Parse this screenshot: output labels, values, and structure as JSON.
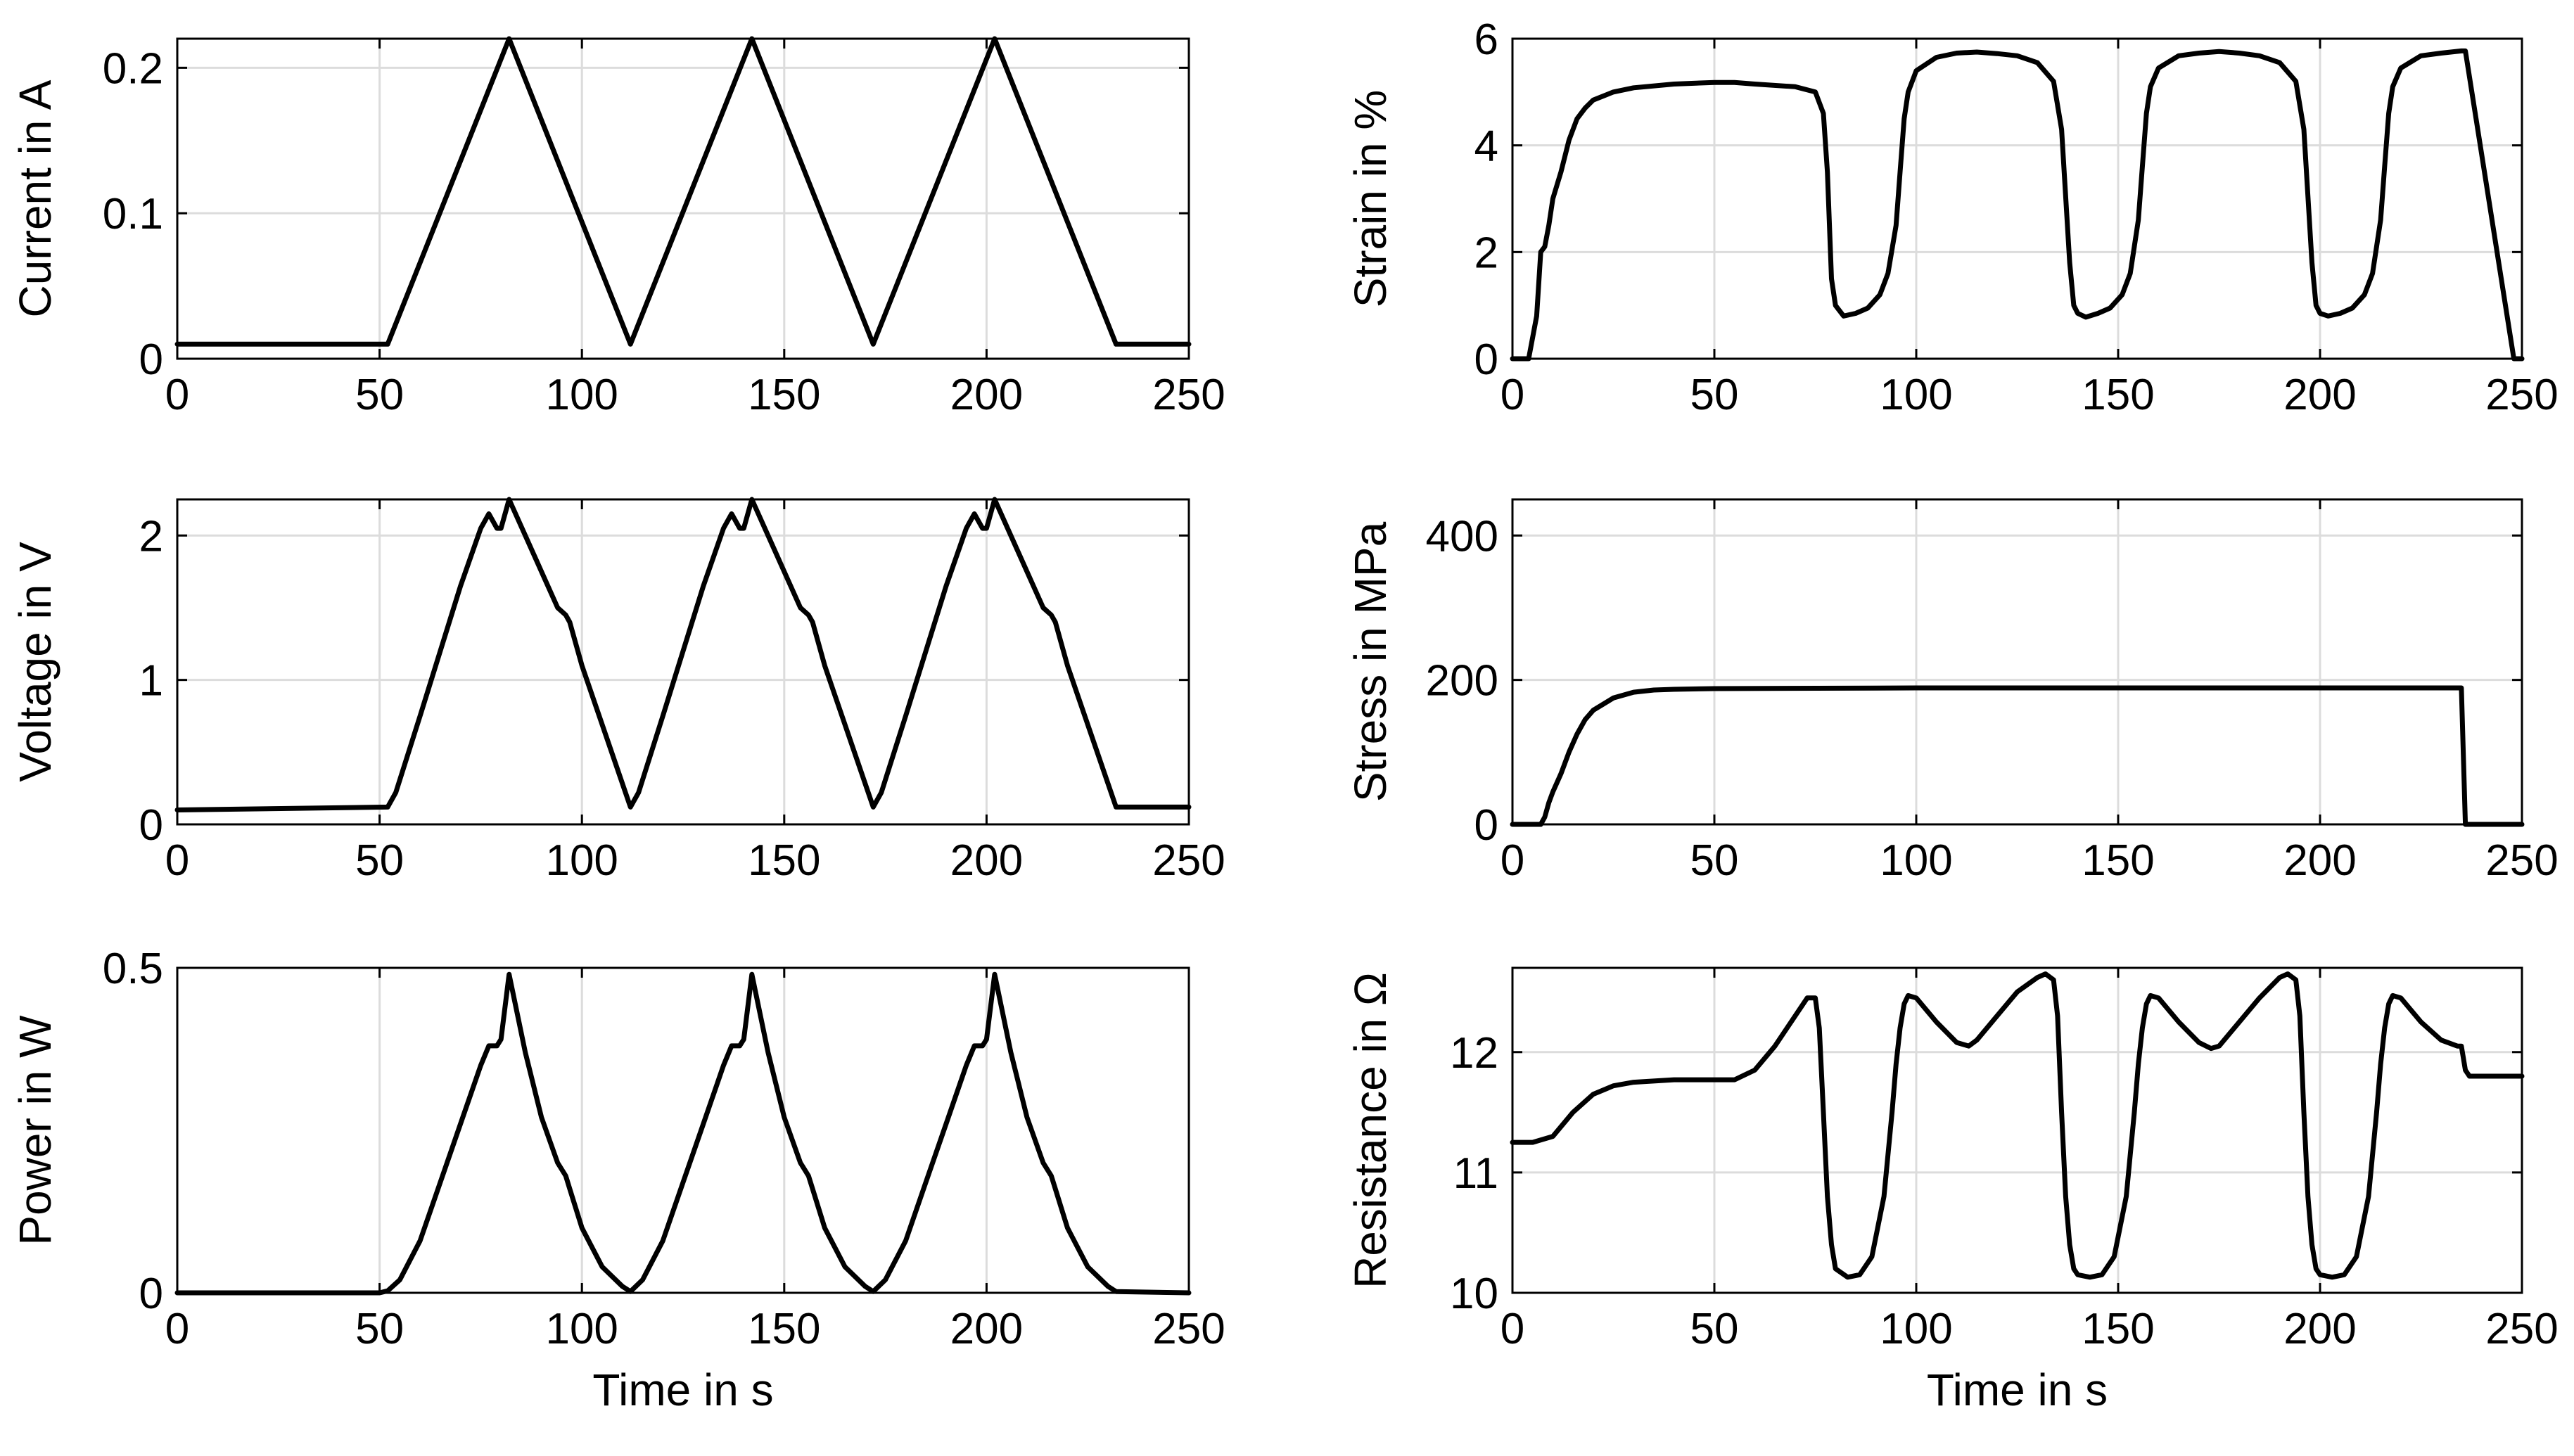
{
  "figure": {
    "style": {
      "line_color": "#000000",
      "grid_color": "#dcdcdc",
      "background": "#ffffff"
    }
  },
  "chart_data": [
    {
      "id": "current",
      "type": "line",
      "title": "",
      "xlabel": "",
      "ylabel": "Current in A",
      "xlim": [
        0,
        250
      ],
      "ylim": [
        0,
        0.22
      ],
      "xticks": [
        0,
        50,
        100,
        150,
        200,
        250
      ],
      "xtick_labels": [
        "0",
        "50",
        "100",
        "150",
        "200",
        "250"
      ],
      "yticks": [
        0,
        0.1,
        0.2
      ],
      "ytick_labels": [
        "0",
        "0.1",
        "0.2"
      ],
      "grid": true,
      "series": [
        {
          "name": "Current",
          "x": [
            0,
            52,
            82,
            112,
            142,
            172,
            202,
            232,
            250
          ],
          "y": [
            0.01,
            0.01,
            0.22,
            0.01,
            0.22,
            0.01,
            0.22,
            0.01,
            0.01
          ]
        }
      ]
    },
    {
      "id": "strain",
      "type": "line",
      "title": "",
      "xlabel": "",
      "ylabel": "Strain in %",
      "xlim": [
        0,
        250
      ],
      "ylim": [
        0,
        6
      ],
      "xticks": [
        0,
        50,
        100,
        150,
        200,
        250
      ],
      "xtick_labels": [
        "0",
        "50",
        "100",
        "150",
        "200",
        "250"
      ],
      "yticks": [
        0,
        2,
        4,
        6
      ],
      "ytick_labels": [
        "0",
        "2",
        "4",
        "6"
      ],
      "grid": true,
      "series": [
        {
          "name": "Strain",
          "x": [
            0,
            4,
            6,
            7,
            8,
            9,
            10,
            12,
            14,
            16,
            18,
            20,
            25,
            30,
            40,
            50,
            55,
            60,
            70,
            75,
            77,
            78,
            79,
            80,
            82,
            85,
            88,
            91,
            93,
            95,
            96,
            97,
            98,
            100,
            105,
            110,
            115,
            120,
            125,
            130,
            134,
            136,
            138,
            139,
            140,
            142,
            145,
            148,
            151,
            153,
            155,
            156,
            157,
            158,
            160,
            165,
            170,
            175,
            180,
            185,
            190,
            194,
            196,
            198,
            199,
            200,
            202,
            205,
            208,
            211,
            213,
            215,
            216,
            217,
            218,
            220,
            225,
            230,
            235,
            236,
            248,
            250
          ],
          "y": [
            0,
            0,
            0.8,
            2.0,
            2.1,
            2.5,
            3.0,
            3.5,
            4.1,
            4.5,
            4.7,
            4.85,
            5.0,
            5.08,
            5.15,
            5.18,
            5.18,
            5.15,
            5.1,
            5.0,
            4.6,
            3.5,
            1.5,
            1.0,
            0.8,
            0.85,
            0.95,
            1.2,
            1.6,
            2.5,
            3.5,
            4.5,
            5.0,
            5.4,
            5.65,
            5.73,
            5.75,
            5.72,
            5.68,
            5.55,
            5.2,
            4.3,
            1.8,
            1.0,
            0.85,
            0.78,
            0.85,
            0.95,
            1.2,
            1.6,
            2.6,
            3.6,
            4.6,
            5.1,
            5.45,
            5.68,
            5.73,
            5.76,
            5.73,
            5.68,
            5.55,
            5.2,
            4.3,
            1.8,
            1.0,
            0.85,
            0.8,
            0.85,
            0.95,
            1.2,
            1.6,
            2.6,
            3.6,
            4.6,
            5.1,
            5.45,
            5.68,
            5.73,
            5.77,
            5.77,
            0,
            0
          ]
        }
      ]
    },
    {
      "id": "voltage",
      "type": "line",
      "title": "",
      "xlabel": "",
      "ylabel": "Voltage in V",
      "xlim": [
        0,
        250
      ],
      "ylim": [
        0,
        2.25
      ],
      "xticks": [
        0,
        50,
        100,
        150,
        200,
        250
      ],
      "xtick_labels": [
        "0",
        "50",
        "100",
        "150",
        "200",
        "250"
      ],
      "yticks": [
        0,
        1,
        2
      ],
      "ytick_labels": [
        "0",
        "1",
        "2"
      ],
      "grid": true,
      "series": [
        {
          "name": "Voltage",
          "x": [
            0,
            52,
            54,
            60,
            70,
            75,
            77,
            79,
            80,
            82,
            86,
            90,
            94,
            96,
            97,
            100,
            112,
            114,
            120,
            130,
            135,
            137,
            139,
            140,
            142,
            146,
            150,
            154,
            156,
            157,
            160,
            172,
            174,
            180,
            190,
            195,
            197,
            199,
            200,
            202,
            206,
            210,
            214,
            216,
            217,
            220,
            232,
            250
          ],
          "y": [
            0.1,
            0.12,
            0.22,
            0.75,
            1.65,
            2.05,
            2.15,
            2.05,
            2.05,
            2.25,
            2.0,
            1.75,
            1.5,
            1.45,
            1.4,
            1.1,
            0.12,
            0.22,
            0.75,
            1.65,
            2.05,
            2.15,
            2.05,
            2.05,
            2.25,
            2.0,
            1.75,
            1.5,
            1.45,
            1.4,
            1.1,
            0.12,
            0.22,
            0.75,
            1.65,
            2.05,
            2.15,
            2.05,
            2.05,
            2.25,
            2.0,
            1.75,
            1.5,
            1.45,
            1.4,
            1.1,
            0.12,
            0.12
          ]
        }
      ]
    },
    {
      "id": "stress",
      "type": "line",
      "title": "",
      "xlabel": "",
      "ylabel": "Stress in MPa",
      "xlim": [
        0,
        250
      ],
      "ylim": [
        0,
        450
      ],
      "xticks": [
        0,
        50,
        100,
        150,
        200,
        250
      ],
      "xtick_labels": [
        "0",
        "50",
        "100",
        "150",
        "200",
        "250"
      ],
      "yticks": [
        0,
        200,
        400
      ],
      "ytick_labels": [
        "0",
        "200",
        "400"
      ],
      "grid": true,
      "series": [
        {
          "name": "Stress",
          "x": [
            0,
            7,
            8,
            9,
            10,
            12,
            14,
            16,
            18,
            20,
            25,
            30,
            35,
            40,
            50,
            100,
            150,
            200,
            235,
            236,
            250
          ],
          "y": [
            0,
            0,
            10,
            30,
            45,
            70,
            100,
            125,
            145,
            158,
            175,
            183,
            186,
            187,
            188,
            189,
            189,
            189,
            189,
            0,
            0
          ]
        }
      ]
    },
    {
      "id": "power",
      "type": "line",
      "title": "",
      "xlabel": "Time in s",
      "ylabel": "Power in W",
      "xlim": [
        0,
        250
      ],
      "ylim": [
        0,
        0.5
      ],
      "xticks": [
        0,
        50,
        100,
        150,
        200,
        250
      ],
      "xtick_labels": [
        "0",
        "50",
        "100",
        "150",
        "200",
        "250"
      ],
      "yticks": [
        0,
        0.5
      ],
      "ytick_labels": [
        "0",
        "0.5"
      ],
      "grid": true,
      "series": [
        {
          "name": "Power",
          "x": [
            0,
            50,
            52,
            55,
            60,
            65,
            70,
            75,
            77,
            79,
            80,
            82,
            86,
            90,
            94,
            96,
            97,
            100,
            105,
            110,
            112,
            115,
            120,
            125,
            130,
            135,
            137,
            139,
            140,
            142,
            146,
            150,
            154,
            156,
            157,
            160,
            165,
            170,
            172,
            175,
            180,
            185,
            190,
            195,
            197,
            199,
            200,
            202,
            206,
            210,
            214,
            216,
            217,
            220,
            225,
            230,
            232,
            250
          ],
          "y": [
            0,
            0,
            0.003,
            0.02,
            0.08,
            0.17,
            0.26,
            0.35,
            0.38,
            0.38,
            0.39,
            0.49,
            0.37,
            0.27,
            0.2,
            0.18,
            0.16,
            0.1,
            0.04,
            0.01,
            0.002,
            0.02,
            0.08,
            0.17,
            0.26,
            0.35,
            0.38,
            0.38,
            0.39,
            0.49,
            0.37,
            0.27,
            0.2,
            0.18,
            0.16,
            0.1,
            0.04,
            0.01,
            0.002,
            0.02,
            0.08,
            0.17,
            0.26,
            0.35,
            0.38,
            0.38,
            0.39,
            0.49,
            0.37,
            0.27,
            0.2,
            0.18,
            0.16,
            0.1,
            0.04,
            0.01,
            0.002,
            0
          ]
        }
      ]
    },
    {
      "id": "resistance",
      "type": "line",
      "title": "",
      "xlabel": "Time in s",
      "ylabel": "Resistance in Ω",
      "xlim": [
        0,
        250
      ],
      "ylim": [
        10,
        12.7
      ],
      "xticks": [
        0,
        50,
        100,
        150,
        200,
        250
      ],
      "xtick_labels": [
        "0",
        "50",
        "100",
        "150",
        "200",
        "250"
      ],
      "yticks": [
        10,
        11,
        12
      ],
      "ytick_labels": [
        "10",
        "11",
        "12"
      ],
      "grid": true,
      "series": [
        {
          "name": "Resistance",
          "x": [
            0,
            5,
            10,
            15,
            20,
            25,
            30,
            40,
            50,
            55,
            60,
            65,
            70,
            73,
            75,
            76,
            77,
            78,
            79,
            80,
            83,
            86,
            89,
            92,
            94,
            95,
            96,
            97,
            98,
            100,
            105,
            110,
            113,
            115,
            120,
            125,
            130,
            132,
            134,
            135,
            136,
            137,
            138,
            139,
            140,
            143,
            146,
            149,
            152,
            154,
            155,
            156,
            157,
            158,
            160,
            165,
            170,
            173,
            175,
            180,
            185,
            190,
            192,
            194,
            195,
            196,
            197,
            198,
            199,
            200,
            203,
            206,
            209,
            212,
            214,
            215,
            216,
            217,
            218,
            220,
            225,
            230,
            234,
            235,
            236,
            237,
            240,
            250
          ],
          "y": [
            11.25,
            11.25,
            11.3,
            11.5,
            11.65,
            11.72,
            11.75,
            11.77,
            11.77,
            11.77,
            11.85,
            12.05,
            12.3,
            12.45,
            12.45,
            12.2,
            11.5,
            10.8,
            10.4,
            10.2,
            10.13,
            10.15,
            10.3,
            10.8,
            11.5,
            11.9,
            12.2,
            12.4,
            12.47,
            12.45,
            12.25,
            12.08,
            12.05,
            12.1,
            12.3,
            12.5,
            12.62,
            12.65,
            12.6,
            12.3,
            11.5,
            10.8,
            10.4,
            10.2,
            10.15,
            10.13,
            10.15,
            10.3,
            10.8,
            11.5,
            11.9,
            12.2,
            12.4,
            12.47,
            12.45,
            12.25,
            12.08,
            12.03,
            12.05,
            12.25,
            12.45,
            12.62,
            12.65,
            12.6,
            12.3,
            11.5,
            10.8,
            10.4,
            10.2,
            10.15,
            10.13,
            10.15,
            10.3,
            10.8,
            11.5,
            11.9,
            12.2,
            12.4,
            12.47,
            12.45,
            12.25,
            12.1,
            12.05,
            12.05,
            11.85,
            11.8,
            11.8,
            11.8
          ]
        }
      ]
    }
  ]
}
